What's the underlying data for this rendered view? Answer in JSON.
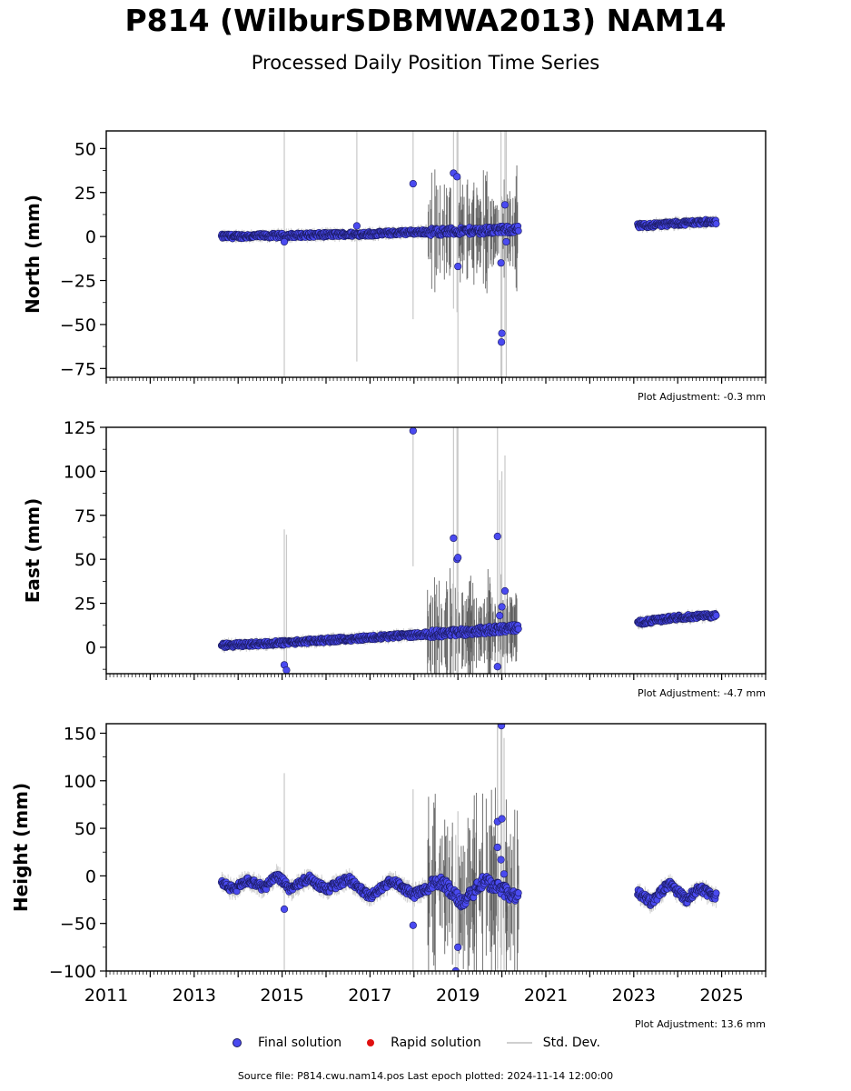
{
  "title": "P814 (WilburSDBMWA2013) NAM14",
  "subtitle": "Processed Daily Position Time Series",
  "colors": {
    "final": "#4a4af0",
    "final_edge": "#1a1a60",
    "rapid": "#e01010",
    "stddev": "#c8c8c8",
    "stddev_dark": "#555555"
  },
  "legend": {
    "final_label": "Final solution",
    "rapid_label": "Rapid solution",
    "stddev_label": "Std. Dev."
  },
  "footer": "Source file: P814.cwu.nam14.pos  Last epoch plotted: 2024-11-14 12:00:00",
  "chart_data": [
    {
      "type": "scatter",
      "ylabel": "North (mm)",
      "adjustment": "Plot Adjustment: -0.3 mm",
      "xlim": [
        2011,
        2026
      ],
      "ylim": [
        -80,
        60
      ],
      "yticks": [
        50,
        25,
        0,
        -25,
        -50,
        -75
      ],
      "ytick_labels": [
        "50",
        "25",
        "0",
        "−25",
        "−50",
        "−75"
      ],
      "trend": [
        {
          "x": 2013.6,
          "y": 0
        },
        {
          "x": 2015.0,
          "y": 0.5
        },
        {
          "x": 2016.0,
          "y": 1
        },
        {
          "x": 2017.0,
          "y": 1.5
        },
        {
          "x": 2018.0,
          "y": 2.5
        },
        {
          "x": 2019.0,
          "y": 3
        },
        {
          "x": 2020.3,
          "y": 4
        },
        {
          "x": 2023.1,
          "y": 6
        },
        {
          "x": 2024.0,
          "y": 7.5
        },
        {
          "x": 2024.8,
          "y": 8.5
        }
      ],
      "outliers": [
        {
          "x": 2017.98,
          "y": 30
        },
        {
          "x": 2018.9,
          "y": 36
        },
        {
          "x": 2018.98,
          "y": 34
        },
        {
          "x": 2019.0,
          "y": -17
        },
        {
          "x": 2019.98,
          "y": -15
        },
        {
          "x": 2019.99,
          "y": -60
        },
        {
          "x": 2020.0,
          "y": -55
        },
        {
          "x": 2020.07,
          "y": 18
        },
        {
          "x": 2020.1,
          "y": -3
        },
        {
          "x": 2015.05,
          "y": -3
        },
        {
          "x": 2016.7,
          "y": 6
        }
      ]
    },
    {
      "type": "scatter",
      "ylabel": "East (mm)",
      "adjustment": "Plot Adjustment: -4.7 mm",
      "xlim": [
        2011,
        2026
      ],
      "ylim": [
        -15,
        125
      ],
      "yticks": [
        125,
        100,
        75,
        50,
        25,
        0
      ],
      "ytick_labels": [
        "125",
        "100",
        "75",
        "50",
        "25",
        "0"
      ],
      "trend": [
        {
          "x": 2013.6,
          "y": 1
        },
        {
          "x": 2014.5,
          "y": 2
        },
        {
          "x": 2015.0,
          "y": 2.5
        },
        {
          "x": 2016.0,
          "y": 4
        },
        {
          "x": 2017.0,
          "y": 5.5
        },
        {
          "x": 2018.0,
          "y": 7
        },
        {
          "x": 2019.0,
          "y": 8.5
        },
        {
          "x": 2020.3,
          "y": 11
        },
        {
          "x": 2023.1,
          "y": 14
        },
        {
          "x": 2024.0,
          "y": 17
        },
        {
          "x": 2024.8,
          "y": 18
        }
      ],
      "outliers": [
        {
          "x": 2017.98,
          "y": 123
        },
        {
          "x": 2018.9,
          "y": 62
        },
        {
          "x": 2018.98,
          "y": 50
        },
        {
          "x": 2019.0,
          "y": 51
        },
        {
          "x": 2019.9,
          "y": 63
        },
        {
          "x": 2019.9,
          "y": -11
        },
        {
          "x": 2020.0,
          "y": 23
        },
        {
          "x": 2020.07,
          "y": 32
        },
        {
          "x": 2019.95,
          "y": 18
        },
        {
          "x": 2015.05,
          "y": -10
        },
        {
          "x": 2015.1,
          "y": -13
        }
      ]
    },
    {
      "type": "scatter",
      "ylabel": "Height (mm)",
      "adjustment": "Plot Adjustment: 13.6 mm",
      "xlim": [
        2011,
        2026
      ],
      "ylim": [
        -100,
        160
      ],
      "yticks": [
        150,
        100,
        50,
        0,
        -50,
        -100
      ],
      "ytick_labels": [
        "150",
        "100",
        "50",
        "0",
        "−50",
        "−100"
      ],
      "xticks": [
        2011,
        2013,
        2015,
        2017,
        2019,
        2021,
        2023,
        2025
      ],
      "xtick_labels": [
        "2011",
        "2013",
        "2015",
        "2017",
        "2019",
        "2021",
        "2023",
        "2025"
      ],
      "trend": [
        {
          "x": 2013.6,
          "y": -5
        },
        {
          "x": 2013.9,
          "y": -15
        },
        {
          "x": 2014.2,
          "y": -5
        },
        {
          "x": 2014.6,
          "y": -12
        },
        {
          "x": 2014.9,
          "y": 0
        },
        {
          "x": 2015.2,
          "y": -15
        },
        {
          "x": 2015.6,
          "y": -2
        },
        {
          "x": 2016.0,
          "y": -15
        },
        {
          "x": 2016.5,
          "y": -3
        },
        {
          "x": 2017.0,
          "y": -22
        },
        {
          "x": 2017.5,
          "y": -5
        },
        {
          "x": 2018.0,
          "y": -20
        },
        {
          "x": 2018.6,
          "y": -5
        },
        {
          "x": 2019.1,
          "y": -28
        },
        {
          "x": 2019.6,
          "y": -5
        },
        {
          "x": 2020.3,
          "y": -22
        },
        {
          "x": 2023.1,
          "y": -18
        },
        {
          "x": 2023.4,
          "y": -28
        },
        {
          "x": 2023.8,
          "y": -8
        },
        {
          "x": 2024.2,
          "y": -25
        },
        {
          "x": 2024.5,
          "y": -12
        },
        {
          "x": 2024.8,
          "y": -22
        }
      ],
      "outliers": [
        {
          "x": 2017.98,
          "y": -52
        },
        {
          "x": 2018.95,
          "y": -100
        },
        {
          "x": 2019.0,
          "y": -75
        },
        {
          "x": 2019.9,
          "y": 57
        },
        {
          "x": 2019.9,
          "y": 30
        },
        {
          "x": 2019.98,
          "y": 17
        },
        {
          "x": 2019.99,
          "y": 158
        },
        {
          "x": 2020.0,
          "y": 60
        },
        {
          "x": 2020.05,
          "y": 2
        },
        {
          "x": 2015.05,
          "y": -35
        }
      ]
    }
  ]
}
